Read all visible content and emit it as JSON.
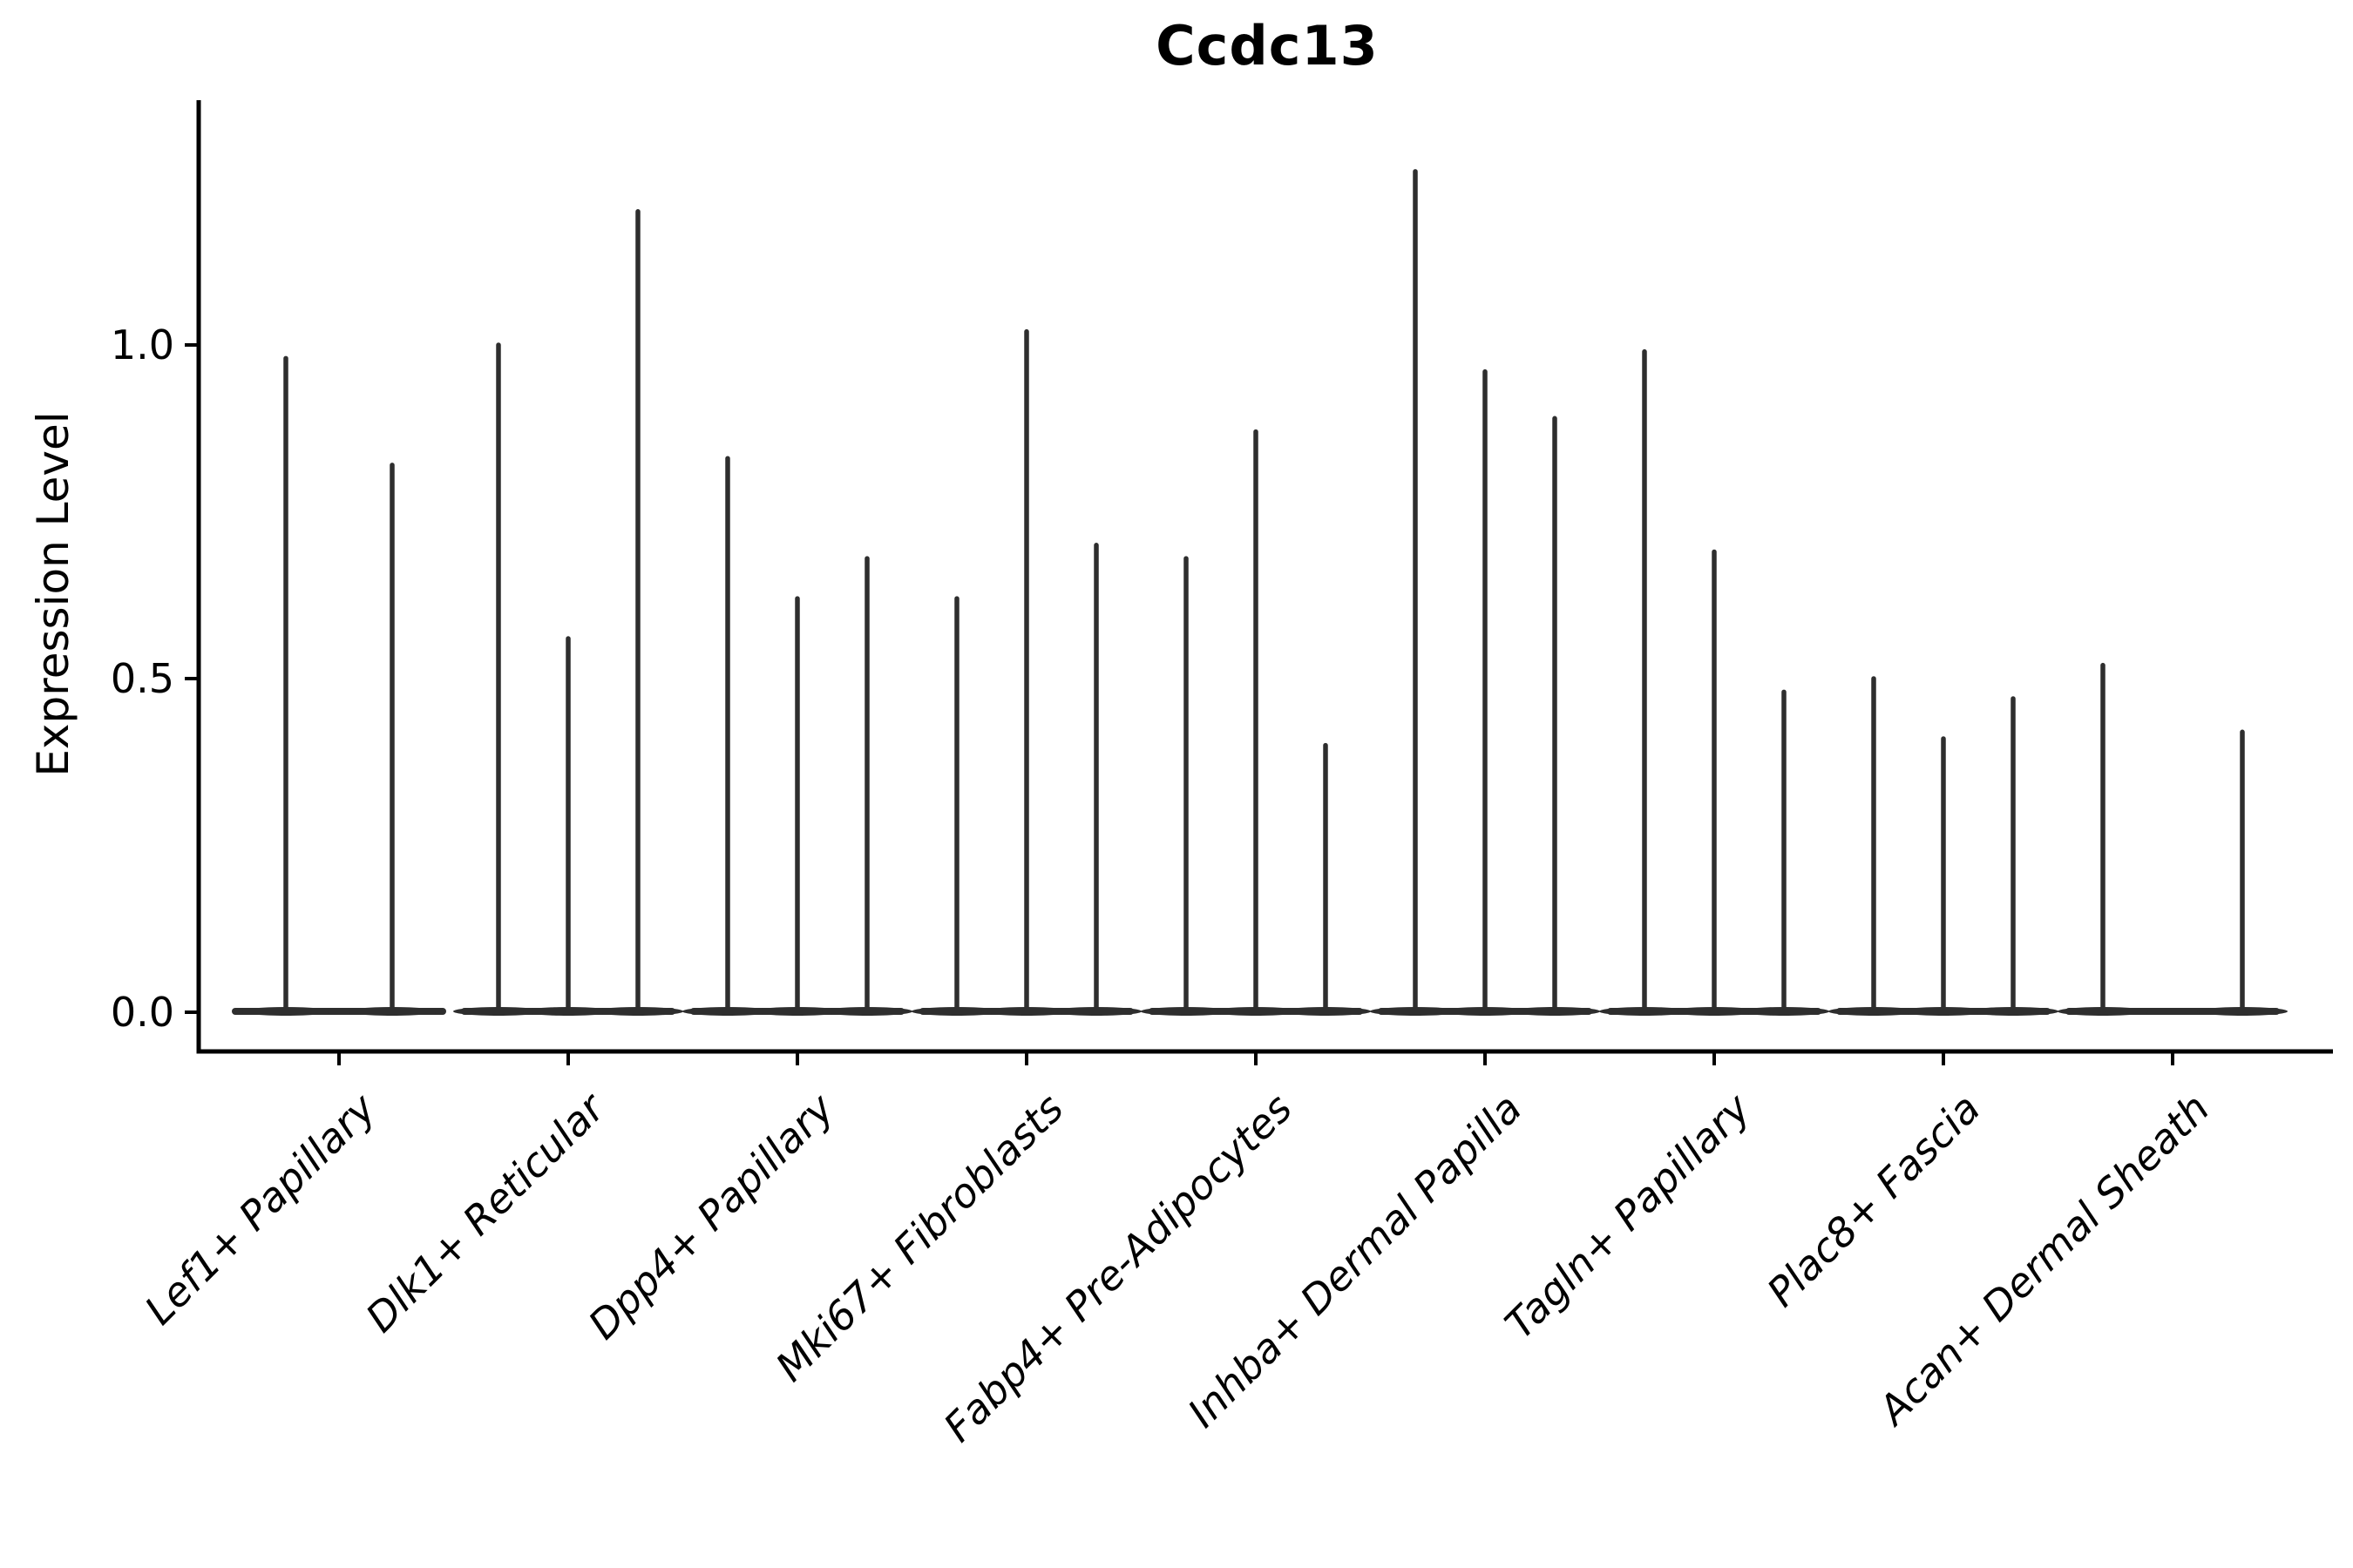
{
  "chart_data": {
    "type": "violin",
    "title": "Ccdc13",
    "ylabel": "Expression Level",
    "xlabel": "",
    "categories": [
      "Lef1+ Papillary",
      "Dlk1+ Reticular",
      "Dpp4+ Papillary",
      "Mki67+ Fibroblasts",
      "Fabp4+ Pre-Adipocytes",
      "Inhba+ Dermal Papilla",
      "Tagln+ Papillary",
      "Plac8+ Fascia",
      "Acan+ Dermal Sheath"
    ],
    "series": [
      {
        "category": "Lef1+ Papillary",
        "violin_max_values": [
          0.98,
          0.82
        ]
      },
      {
        "category": "Dlk1+ Reticular",
        "violin_max_values": [
          1.0,
          0.56,
          1.2
        ]
      },
      {
        "category": "Dpp4+ Papillary",
        "violin_max_values": [
          0.83,
          0.62,
          0.68
        ]
      },
      {
        "category": "Mki67+ Fibroblasts",
        "violin_max_values": [
          0.62,
          1.02,
          0.7
        ]
      },
      {
        "category": "Fabp4+ Pre-Adipocytes",
        "violin_max_values": [
          0.68,
          0.87,
          0.4
        ]
      },
      {
        "category": "Inhba+ Dermal Papilla",
        "violin_max_values": [
          1.26,
          0.96,
          0.89
        ]
      },
      {
        "category": "Tagln+ Papillary",
        "violin_max_values": [
          0.99,
          0.69,
          0.48
        ]
      },
      {
        "category": "Plac8+ Fascia",
        "violin_max_values": [
          0.5,
          0.41,
          0.47
        ]
      },
      {
        "category": "Acan+ Dermal Sheath",
        "violin_max_values": [
          0.52,
          0,
          0.42
        ]
      }
    ],
    "ytick_labels": [
      "0.0",
      "0.5",
      "1.0"
    ],
    "ytick_values": [
      0.0,
      0.5,
      1.0
    ],
    "ylim": [
      0.0,
      1.37
    ],
    "grid": false,
    "legend": null,
    "violin_color": "#2e2e2e",
    "axis_color": "#000000"
  }
}
